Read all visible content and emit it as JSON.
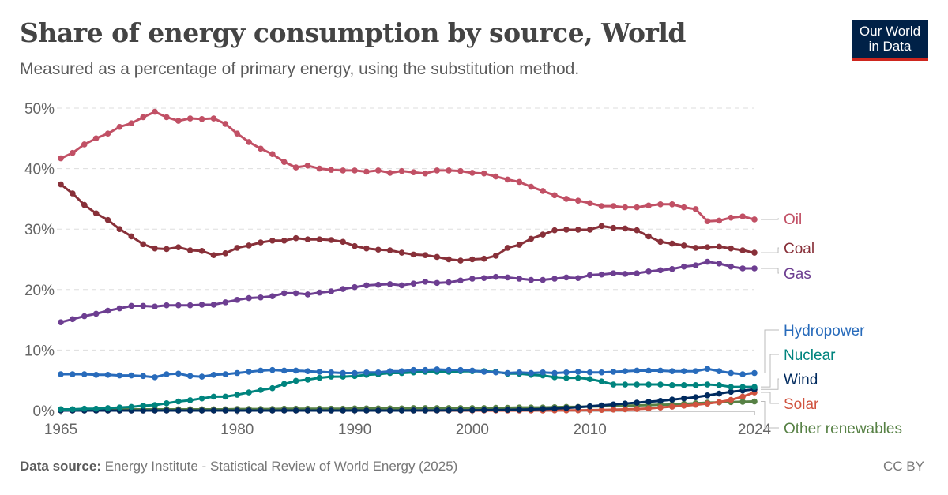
{
  "header": {
    "title": "Share of energy consumption by source, World",
    "subtitle": "Measured as a percentage of primary energy, using the substitution method.",
    "logo_text": "Our World in Data",
    "logo_line1": "Our World",
    "logo_line2": "in Data"
  },
  "footer": {
    "source_label": "Data source:",
    "source_text": "Energy Institute - Statistical Review of World Energy (2025)",
    "license": "CC BY"
  },
  "chart_data": {
    "type": "line",
    "title": "Share of energy consumption by source, World",
    "xlabel": "",
    "ylabel": "",
    "xlim": [
      1965,
      2024
    ],
    "ylim": [
      0,
      50
    ],
    "grid": "horizontal dashed",
    "legend": "right (end labels)",
    "x_ticks": [
      "1965",
      "1980",
      "1990",
      "2000",
      "2010",
      "2024"
    ],
    "y_ticks": [
      "0%",
      "10%",
      "20%",
      "30%",
      "40%",
      "50%"
    ],
    "x_start": 1965,
    "series": [
      {
        "name": "Oil",
        "color": "#c15065",
        "values": [
          41.7,
          42.6,
          44.0,
          45.0,
          45.8,
          46.9,
          47.5,
          48.5,
          49.4,
          48.5,
          47.9,
          48.3,
          48.2,
          48.3,
          47.4,
          45.8,
          44.4,
          43.3,
          42.4,
          41.1,
          40.2,
          40.5,
          40.0,
          39.8,
          39.7,
          39.7,
          39.5,
          39.7,
          39.3,
          39.6,
          39.4,
          39.2,
          39.7,
          39.7,
          39.6,
          39.3,
          39.2,
          38.7,
          38.2,
          37.8,
          37.0,
          36.3,
          35.6,
          35.0,
          34.7,
          34.3,
          33.8,
          33.8,
          33.6,
          33.6,
          33.9,
          34.1,
          34.1,
          33.6,
          33.3,
          31.3,
          31.4,
          31.9,
          32.1,
          31.6
        ]
      },
      {
        "name": "Coal",
        "color": "#883039",
        "values": [
          37.4,
          35.9,
          34.0,
          32.6,
          31.5,
          30.0,
          28.8,
          27.5,
          26.8,
          26.7,
          27.0,
          26.5,
          26.4,
          25.7,
          26.0,
          26.9,
          27.3,
          27.8,
          28.1,
          28.1,
          28.5,
          28.3,
          28.3,
          28.2,
          27.9,
          27.2,
          26.8,
          26.6,
          26.5,
          26.1,
          25.8,
          25.7,
          25.4,
          25.0,
          24.8,
          25.0,
          25.1,
          25.6,
          26.9,
          27.4,
          28.4,
          29.1,
          29.8,
          29.9,
          29.9,
          29.9,
          30.5,
          30.2,
          30.1,
          29.8,
          28.8,
          27.9,
          27.6,
          27.3,
          26.9,
          27.0,
          27.1,
          26.8,
          26.5,
          26.1
        ]
      },
      {
        "name": "Gas",
        "color": "#6d3e91",
        "values": [
          14.6,
          15.1,
          15.6,
          16.0,
          16.5,
          16.9,
          17.3,
          17.3,
          17.2,
          17.4,
          17.4,
          17.4,
          17.5,
          17.5,
          17.9,
          18.3,
          18.6,
          18.7,
          18.9,
          19.4,
          19.4,
          19.2,
          19.5,
          19.7,
          20.1,
          20.4,
          20.7,
          20.8,
          20.9,
          20.7,
          21.0,
          21.3,
          21.1,
          21.2,
          21.5,
          21.8,
          21.9,
          22.1,
          22.0,
          21.8,
          21.6,
          21.6,
          21.8,
          22.0,
          21.9,
          22.4,
          22.5,
          22.7,
          22.6,
          22.7,
          23.0,
          23.2,
          23.4,
          23.8,
          24.0,
          24.6,
          24.3,
          23.8,
          23.5,
          23.5
        ]
      },
      {
        "name": "Hydropower",
        "color": "#286bbb",
        "values": [
          6.0,
          6.0,
          6.0,
          5.9,
          5.9,
          5.8,
          5.8,
          5.7,
          5.5,
          6.0,
          6.1,
          5.7,
          5.6,
          5.9,
          6.0,
          6.2,
          6.4,
          6.6,
          6.7,
          6.6,
          6.6,
          6.5,
          6.4,
          6.3,
          6.2,
          6.2,
          6.3,
          6.3,
          6.5,
          6.5,
          6.7,
          6.7,
          6.8,
          6.7,
          6.7,
          6.6,
          6.4,
          6.3,
          6.2,
          6.3,
          6.2,
          6.3,
          6.2,
          6.3,
          6.4,
          6.3,
          6.3,
          6.4,
          6.5,
          6.6,
          6.6,
          6.6,
          6.5,
          6.5,
          6.5,
          6.9,
          6.5,
          6.2,
          6.0,
          6.2
        ]
      },
      {
        "name": "Nuclear",
        "color": "#00847e",
        "values": [
          0.2,
          0.2,
          0.3,
          0.3,
          0.4,
          0.5,
          0.6,
          0.8,
          0.9,
          1.2,
          1.5,
          1.7,
          2.0,
          2.3,
          2.3,
          2.6,
          3.0,
          3.4,
          3.7,
          4.4,
          4.9,
          5.1,
          5.4,
          5.6,
          5.6,
          5.7,
          5.9,
          6.0,
          6.2,
          6.2,
          6.3,
          6.4,
          6.4,
          6.4,
          6.5,
          6.5,
          6.5,
          6.4,
          6.1,
          6.1,
          5.9,
          5.8,
          5.5,
          5.4,
          5.4,
          5.2,
          4.8,
          4.3,
          4.3,
          4.3,
          4.3,
          4.3,
          4.2,
          4.2,
          4.2,
          4.3,
          4.2,
          3.9,
          3.9,
          3.9
        ]
      },
      {
        "name": "Wind",
        "color": "#002a5e",
        "values": [
          0,
          0,
          0,
          0,
          0,
          0,
          0,
          0,
          0,
          0,
          0,
          0,
          0,
          0,
          0,
          0,
          0,
          0,
          0,
          0,
          0,
          0,
          0,
          0,
          0,
          0,
          0,
          0,
          0,
          0,
          0.01,
          0.01,
          0.02,
          0.03,
          0.04,
          0.05,
          0.07,
          0.09,
          0.11,
          0.14,
          0.2,
          0.25,
          0.33,
          0.42,
          0.55,
          0.7,
          0.85,
          1.0,
          1.15,
          1.3,
          1.45,
          1.6,
          1.8,
          2.0,
          2.2,
          2.5,
          2.8,
          3.1,
          3.3,
          3.5
        ]
      },
      {
        "name": "Solar",
        "color": "#d0533f",
        "values": [
          0,
          0,
          0,
          0,
          0,
          0,
          0,
          0,
          0,
          0,
          0,
          0,
          0,
          0,
          0,
          0,
          0,
          0,
          0,
          0,
          0,
          0,
          0,
          0,
          0,
          0,
          0,
          0,
          0,
          0,
          0,
          0,
          0,
          0,
          0,
          0,
          0,
          0,
          0,
          0,
          0.01,
          0.01,
          0.02,
          0.03,
          0.04,
          0.06,
          0.1,
          0.15,
          0.2,
          0.25,
          0.35,
          0.5,
          0.65,
          0.8,
          0.95,
          1.15,
          1.4,
          1.75,
          2.3,
          3.0
        ]
      },
      {
        "name": "Other renewables",
        "color": "#578145",
        "values": [
          0.2,
          0.2,
          0.2,
          0.2,
          0.2,
          0.2,
          0.2,
          0.2,
          0.2,
          0.2,
          0.2,
          0.2,
          0.2,
          0.2,
          0.2,
          0.25,
          0.25,
          0.25,
          0.25,
          0.3,
          0.3,
          0.3,
          0.3,
          0.3,
          0.3,
          0.35,
          0.35,
          0.35,
          0.35,
          0.35,
          0.4,
          0.4,
          0.4,
          0.4,
          0.4,
          0.4,
          0.4,
          0.45,
          0.45,
          0.5,
          0.5,
          0.5,
          0.55,
          0.6,
          0.6,
          0.65,
          0.7,
          0.75,
          0.8,
          0.85,
          0.9,
          0.95,
          1.0,
          1.1,
          1.2,
          1.3,
          1.35,
          1.4,
          1.45,
          1.5
        ]
      }
    ]
  }
}
